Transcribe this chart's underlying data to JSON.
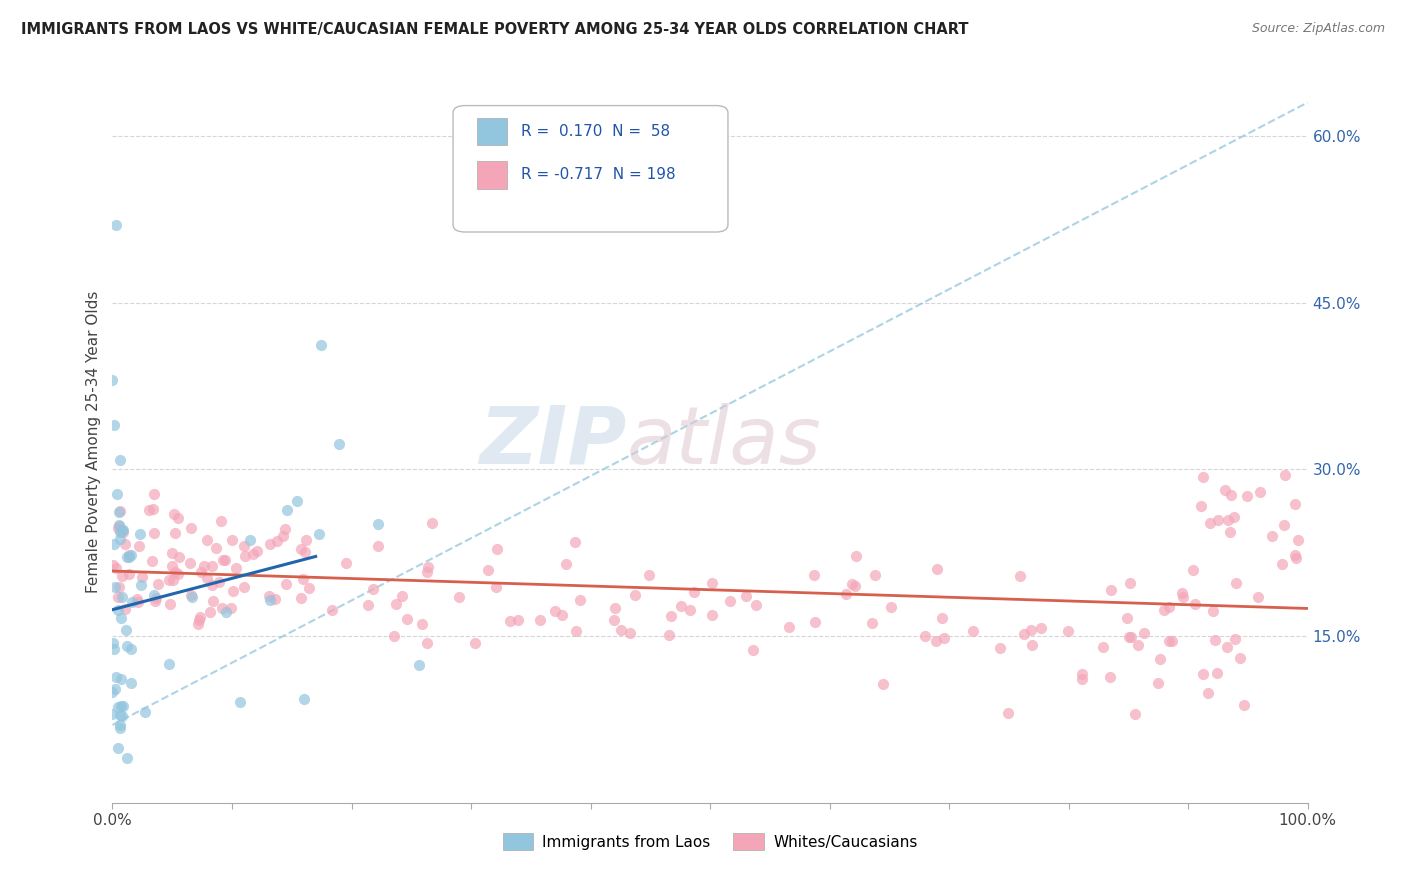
{
  "title": "IMMIGRANTS FROM LAOS VS WHITE/CAUCASIAN FEMALE POVERTY AMONG 25-34 YEAR OLDS CORRELATION CHART",
  "source": "Source: ZipAtlas.com",
  "ylabel": "Female Poverty Among 25-34 Year Olds",
  "xlim": [
    0.0,
    1.0
  ],
  "ylim": [
    0.0,
    0.65
  ],
  "y_ticks_right": [
    0.15,
    0.3,
    0.45,
    0.6
  ],
  "y_tick_labels_right": [
    "15.0%",
    "30.0%",
    "45.0%",
    "60.0%"
  ],
  "legend_r_blue": "0.170",
  "legend_n_blue": "58",
  "legend_r_pink": "-0.717",
  "legend_n_pink": "198",
  "blue_color": "#92c5de",
  "pink_color": "#f4a6b8",
  "blue_line_color": "#2166ac",
  "pink_line_color": "#d6604d",
  "dashed_line_color": "#92c5de",
  "grid_color": "#cccccc",
  "watermark_zip_color": "#c8d8e8",
  "watermark_atlas_color": "#ddc8d0"
}
